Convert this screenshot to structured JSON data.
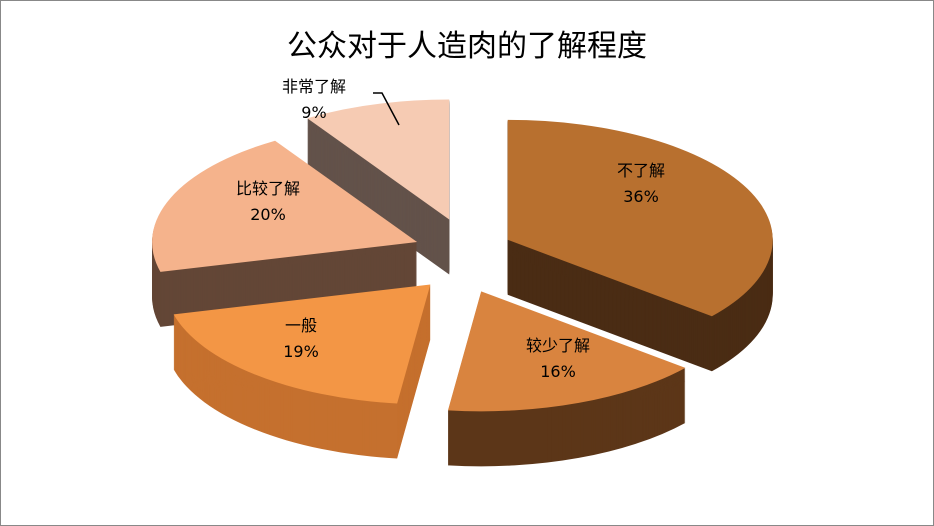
{
  "chart_data": {
    "type": "pie",
    "style": "3d-exploded",
    "title": "公众对于人造肉的了解程度",
    "slices": [
      {
        "label": "不了解",
        "value": 36,
        "pct": "36%",
        "color": "#B8702F",
        "side": "#4A2C14"
      },
      {
        "label": "较少了解",
        "value": 16,
        "pct": "16%",
        "color": "#D9843F",
        "side": "#5C3618"
      },
      {
        "label": "一般",
        "value": 19,
        "pct": "19%",
        "color": "#F39645",
        "side": "#C5702E"
      },
      {
        "label": "比较了解",
        "value": 20,
        "pct": "20%",
        "color": "#F5B38C",
        "side": "#634636"
      },
      {
        "label": "非常了解",
        "value": 9,
        "pct": "9%",
        "color": "#F6CBB3",
        "side": "#63524A"
      }
    ],
    "legend": "none"
  }
}
